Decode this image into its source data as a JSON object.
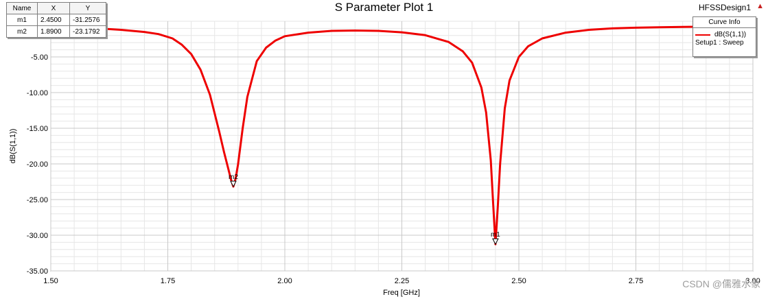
{
  "header": {
    "title": "S Parameter Plot 1",
    "design": "HFSSDesign1"
  },
  "marker_table": {
    "headers": [
      "Name",
      "X",
      "Y"
    ],
    "rows": [
      [
        "m1",
        "2.4500",
        "-31.2576"
      ],
      [
        "m2",
        "1.8900",
        "-23.1792"
      ]
    ]
  },
  "curve_info": {
    "title": "Curve Info",
    "entries": [
      {
        "name": "dB(S(1,1))",
        "setup": "Setup1 : Sweep"
      }
    ]
  },
  "watermark": "CSDN @儒雅水象",
  "colors": {
    "curve": "#ee0000",
    "grid": "#c8c8c8",
    "warning": "#c82020"
  },
  "icons": {
    "warning": "warning-triangle-icon"
  },
  "chart_data": {
    "type": "line",
    "xlabel": "Freq [GHz]",
    "ylabel": "dB(S(1,1))",
    "xlim": [
      1.5,
      3.0
    ],
    "ylim": [
      -35.0,
      0.0
    ],
    "xticks": [
      1.5,
      1.75,
      2.0,
      2.25,
      2.5,
      2.75,
      3.0
    ],
    "xtick_labels": [
      "1.50",
      "1.75",
      "2.00",
      "2.25",
      "2.50",
      "2.75",
      "3.00"
    ],
    "yticks": [
      -5,
      -10,
      -15,
      -20,
      -25,
      -30,
      -35
    ],
    "ytick_labels": [
      "-5.00",
      "-10.00",
      "-15.00",
      "-20.00",
      "-25.00",
      "-30.00",
      "-35.00"
    ],
    "grid": true,
    "legend": "top-right",
    "series": [
      {
        "name": "dB(S(1,1))",
        "x": [
          1.5,
          1.55,
          1.6,
          1.65,
          1.7,
          1.73,
          1.76,
          1.78,
          1.8,
          1.82,
          1.84,
          1.86,
          1.87,
          1.88,
          1.885,
          1.89,
          1.895,
          1.9,
          1.91,
          1.92,
          1.94,
          1.96,
          1.98,
          2.0,
          2.05,
          2.1,
          2.15,
          2.2,
          2.25,
          2.3,
          2.35,
          2.38,
          2.4,
          2.42,
          2.43,
          2.44,
          2.445,
          2.45,
          2.455,
          2.46,
          2.47,
          2.48,
          2.5,
          2.52,
          2.55,
          2.6,
          2.65,
          2.7,
          2.75,
          2.8,
          2.85,
          2.9,
          2.95,
          3.0
        ],
        "y": [
          -0.8,
          -0.9,
          -1.0,
          -1.2,
          -1.5,
          -1.8,
          -2.4,
          -3.3,
          -4.6,
          -6.8,
          -10.3,
          -15.5,
          -18.3,
          -20.9,
          -22.2,
          -23.18,
          -22.0,
          -20.1,
          -15.0,
          -10.6,
          -5.6,
          -3.7,
          -2.7,
          -2.1,
          -1.6,
          -1.35,
          -1.3,
          -1.35,
          -1.55,
          -1.95,
          -2.9,
          -4.2,
          -5.8,
          -9.3,
          -12.8,
          -19.5,
          -25.5,
          -31.26,
          -26.0,
          -20.0,
          -12.2,
          -8.3,
          -5.0,
          -3.5,
          -2.4,
          -1.6,
          -1.2,
          -1.0,
          -0.9,
          -0.85,
          -0.8,
          -0.75,
          -0.7,
          -0.7
        ]
      }
    ],
    "markers": [
      {
        "name": "m1",
        "x": 2.45,
        "y": -31.2576
      },
      {
        "name": "m2",
        "x": 1.89,
        "y": -23.1792
      }
    ]
  }
}
